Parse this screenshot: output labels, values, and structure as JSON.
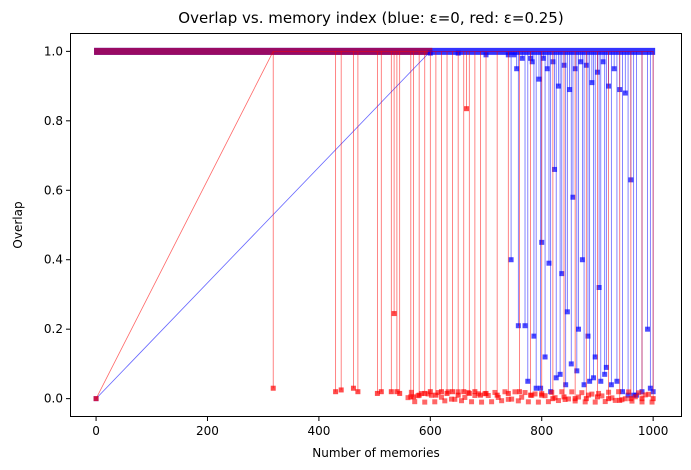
{
  "chart_data": {
    "type": "line",
    "title": "Overlap vs. memory index  (blue: ε=0, red: ε=0.25)",
    "xlabel": "Number of memories",
    "ylabel": "Overlap",
    "xlim": [
      -45,
      1050
    ],
    "ylim": [
      -0.05,
      1.05
    ],
    "xticks": [
      "0",
      "200",
      "400",
      "600",
      "800",
      "1000"
    ],
    "yticks": [
      "0.0",
      "0.2",
      "0.4",
      "0.6",
      "0.8",
      "1.0"
    ],
    "grid": false,
    "legend": "none",
    "series": [
      {
        "color": "#0000ff",
        "marker": "square",
        "points": [
          [
            0,
            0.0
          ],
          [
            600,
            0.995
          ],
          [
            650,
            0.995
          ],
          [
            700,
            0.99
          ],
          [
            740,
            0.99
          ],
          [
            745,
            0.4
          ],
          [
            750,
            0.99
          ],
          [
            755,
            0.95
          ],
          [
            758,
            0.21
          ],
          [
            765,
            0.98
          ],
          [
            770,
            0.21
          ],
          [
            775,
            0.05
          ],
          [
            780,
            0.98
          ],
          [
            783,
            0.97
          ],
          [
            786,
            0.18
          ],
          [
            790,
            0.03
          ],
          [
            795,
            0.92
          ],
          [
            798,
            0.03
          ],
          [
            800,
            0.45
          ],
          [
            803,
            0.98
          ],
          [
            806,
            0.12
          ],
          [
            810,
            0.95
          ],
          [
            813,
            0.39
          ],
          [
            816,
            0.02
          ],
          [
            820,
            0.97
          ],
          [
            823,
            0.66
          ],
          [
            826,
            0.06
          ],
          [
            830,
            0.9
          ],
          [
            833,
            0.07
          ],
          [
            836,
            0.36
          ],
          [
            840,
            0.96
          ],
          [
            843,
            0.04
          ],
          [
            846,
            0.25
          ],
          [
            850,
            0.89
          ],
          [
            853,
            0.1
          ],
          [
            856,
            0.58
          ],
          [
            860,
            0.95
          ],
          [
            863,
            0.08
          ],
          [
            866,
            0.2
          ],
          [
            870,
            0.97
          ],
          [
            873,
            0.4
          ],
          [
            876,
            0.04
          ],
          [
            880,
            0.96
          ],
          [
            883,
            0.18
          ],
          [
            886,
            0.05
          ],
          [
            890,
            0.91
          ],
          [
            893,
            0.06
          ],
          [
            896,
            0.12
          ],
          [
            900,
            0.94
          ],
          [
            903,
            0.32
          ],
          [
            906,
            0.05
          ],
          [
            910,
            0.97
          ],
          [
            913,
            0.07
          ],
          [
            916,
            0.09
          ],
          [
            920,
            0.9
          ],
          [
            925,
            0.04
          ],
          [
            930,
            0.95
          ],
          [
            935,
            0.05
          ],
          [
            940,
            0.89
          ],
          [
            945,
            0.02
          ],
          [
            950,
            0.88
          ],
          [
            955,
            0.01
          ],
          [
            960,
            0.63
          ],
          [
            965,
            0.01
          ],
          [
            970,
            0.01
          ],
          [
            980,
            0.02
          ],
          [
            990,
            0.2
          ],
          [
            995,
            0.03
          ],
          [
            1000,
            0.02
          ]
        ]
      },
      {
        "color": "#ff0000",
        "marker": "square",
        "points": [
          [
            0,
            0.0
          ],
          [
            318,
            0.03
          ],
          [
            430,
            0.02
          ],
          [
            440,
            0.025
          ],
          [
            462,
            0.03
          ],
          [
            470,
            0.02
          ],
          [
            505,
            0.015
          ],
          [
            512,
            0.02
          ],
          [
            530,
            0.02
          ],
          [
            535,
            0.245
          ],
          [
            540,
            0.02
          ],
          [
            545,
            0.015
          ],
          [
            565,
            0.005
          ],
          [
            570,
            0.005
          ],
          [
            580,
            0.01
          ],
          [
            590,
            0.015
          ],
          [
            600,
            0.02
          ],
          [
            610,
            0.01
          ],
          [
            620,
            0.02
          ],
          [
            630,
            0.015
          ],
          [
            640,
            0.02
          ],
          [
            650,
            0.01
          ],
          [
            660,
            0.02
          ],
          [
            665,
            0.835
          ],
          [
            670,
            0.015
          ],
          [
            680,
            0.02
          ],
          [
            690,
            0.01
          ],
          [
            700,
            0.015
          ],
          [
            720,
            0.01
          ],
          [
            740,
            0.015
          ],
          [
            760,
            0.02
          ],
          [
            780,
            0.01
          ],
          [
            800,
            0.01
          ],
          [
            820,
            0.0
          ],
          [
            840,
            0.005
          ],
          [
            860,
            0.0
          ],
          [
            880,
            0.0
          ],
          [
            900,
            0.005
          ],
          [
            920,
            0.0
          ],
          [
            940,
            -0.005
          ],
          [
            960,
            0.0
          ],
          [
            980,
            0.0
          ],
          [
            1000,
            0.0
          ]
        ]
      }
    ]
  }
}
